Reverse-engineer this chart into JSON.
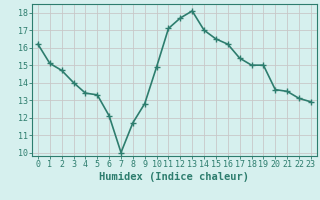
{
  "x": [
    0,
    1,
    2,
    3,
    4,
    5,
    6,
    7,
    8,
    9,
    10,
    11,
    12,
    13,
    14,
    15,
    16,
    17,
    18,
    19,
    20,
    21,
    22,
    23
  ],
  "y": [
    16.2,
    15.1,
    14.7,
    14.0,
    13.4,
    13.3,
    12.1,
    10.0,
    11.7,
    12.8,
    14.9,
    17.1,
    17.7,
    18.1,
    17.0,
    16.5,
    16.2,
    15.4,
    15.0,
    15.0,
    13.6,
    13.5,
    13.1,
    12.9
  ],
  "line_color": "#2d7d6e",
  "marker": "+",
  "marker_size": 4,
  "bg_color": "#d6f0ee",
  "grid_color": "#c8c8c8",
  "tick_color": "#2d7d6e",
  "xlabel": "Humidex (Indice chaleur)",
  "xlabel_fontsize": 7.5,
  "ylim": [
    9.8,
    18.5
  ],
  "yticks": [
    10,
    11,
    12,
    13,
    14,
    15,
    16,
    17,
    18
  ],
  "xticks": [
    0,
    1,
    2,
    3,
    4,
    5,
    6,
    7,
    8,
    9,
    10,
    11,
    12,
    13,
    14,
    15,
    16,
    17,
    18,
    19,
    20,
    21,
    22,
    23
  ],
  "linewidth": 1.2,
  "tick_fontsize": 6.0
}
